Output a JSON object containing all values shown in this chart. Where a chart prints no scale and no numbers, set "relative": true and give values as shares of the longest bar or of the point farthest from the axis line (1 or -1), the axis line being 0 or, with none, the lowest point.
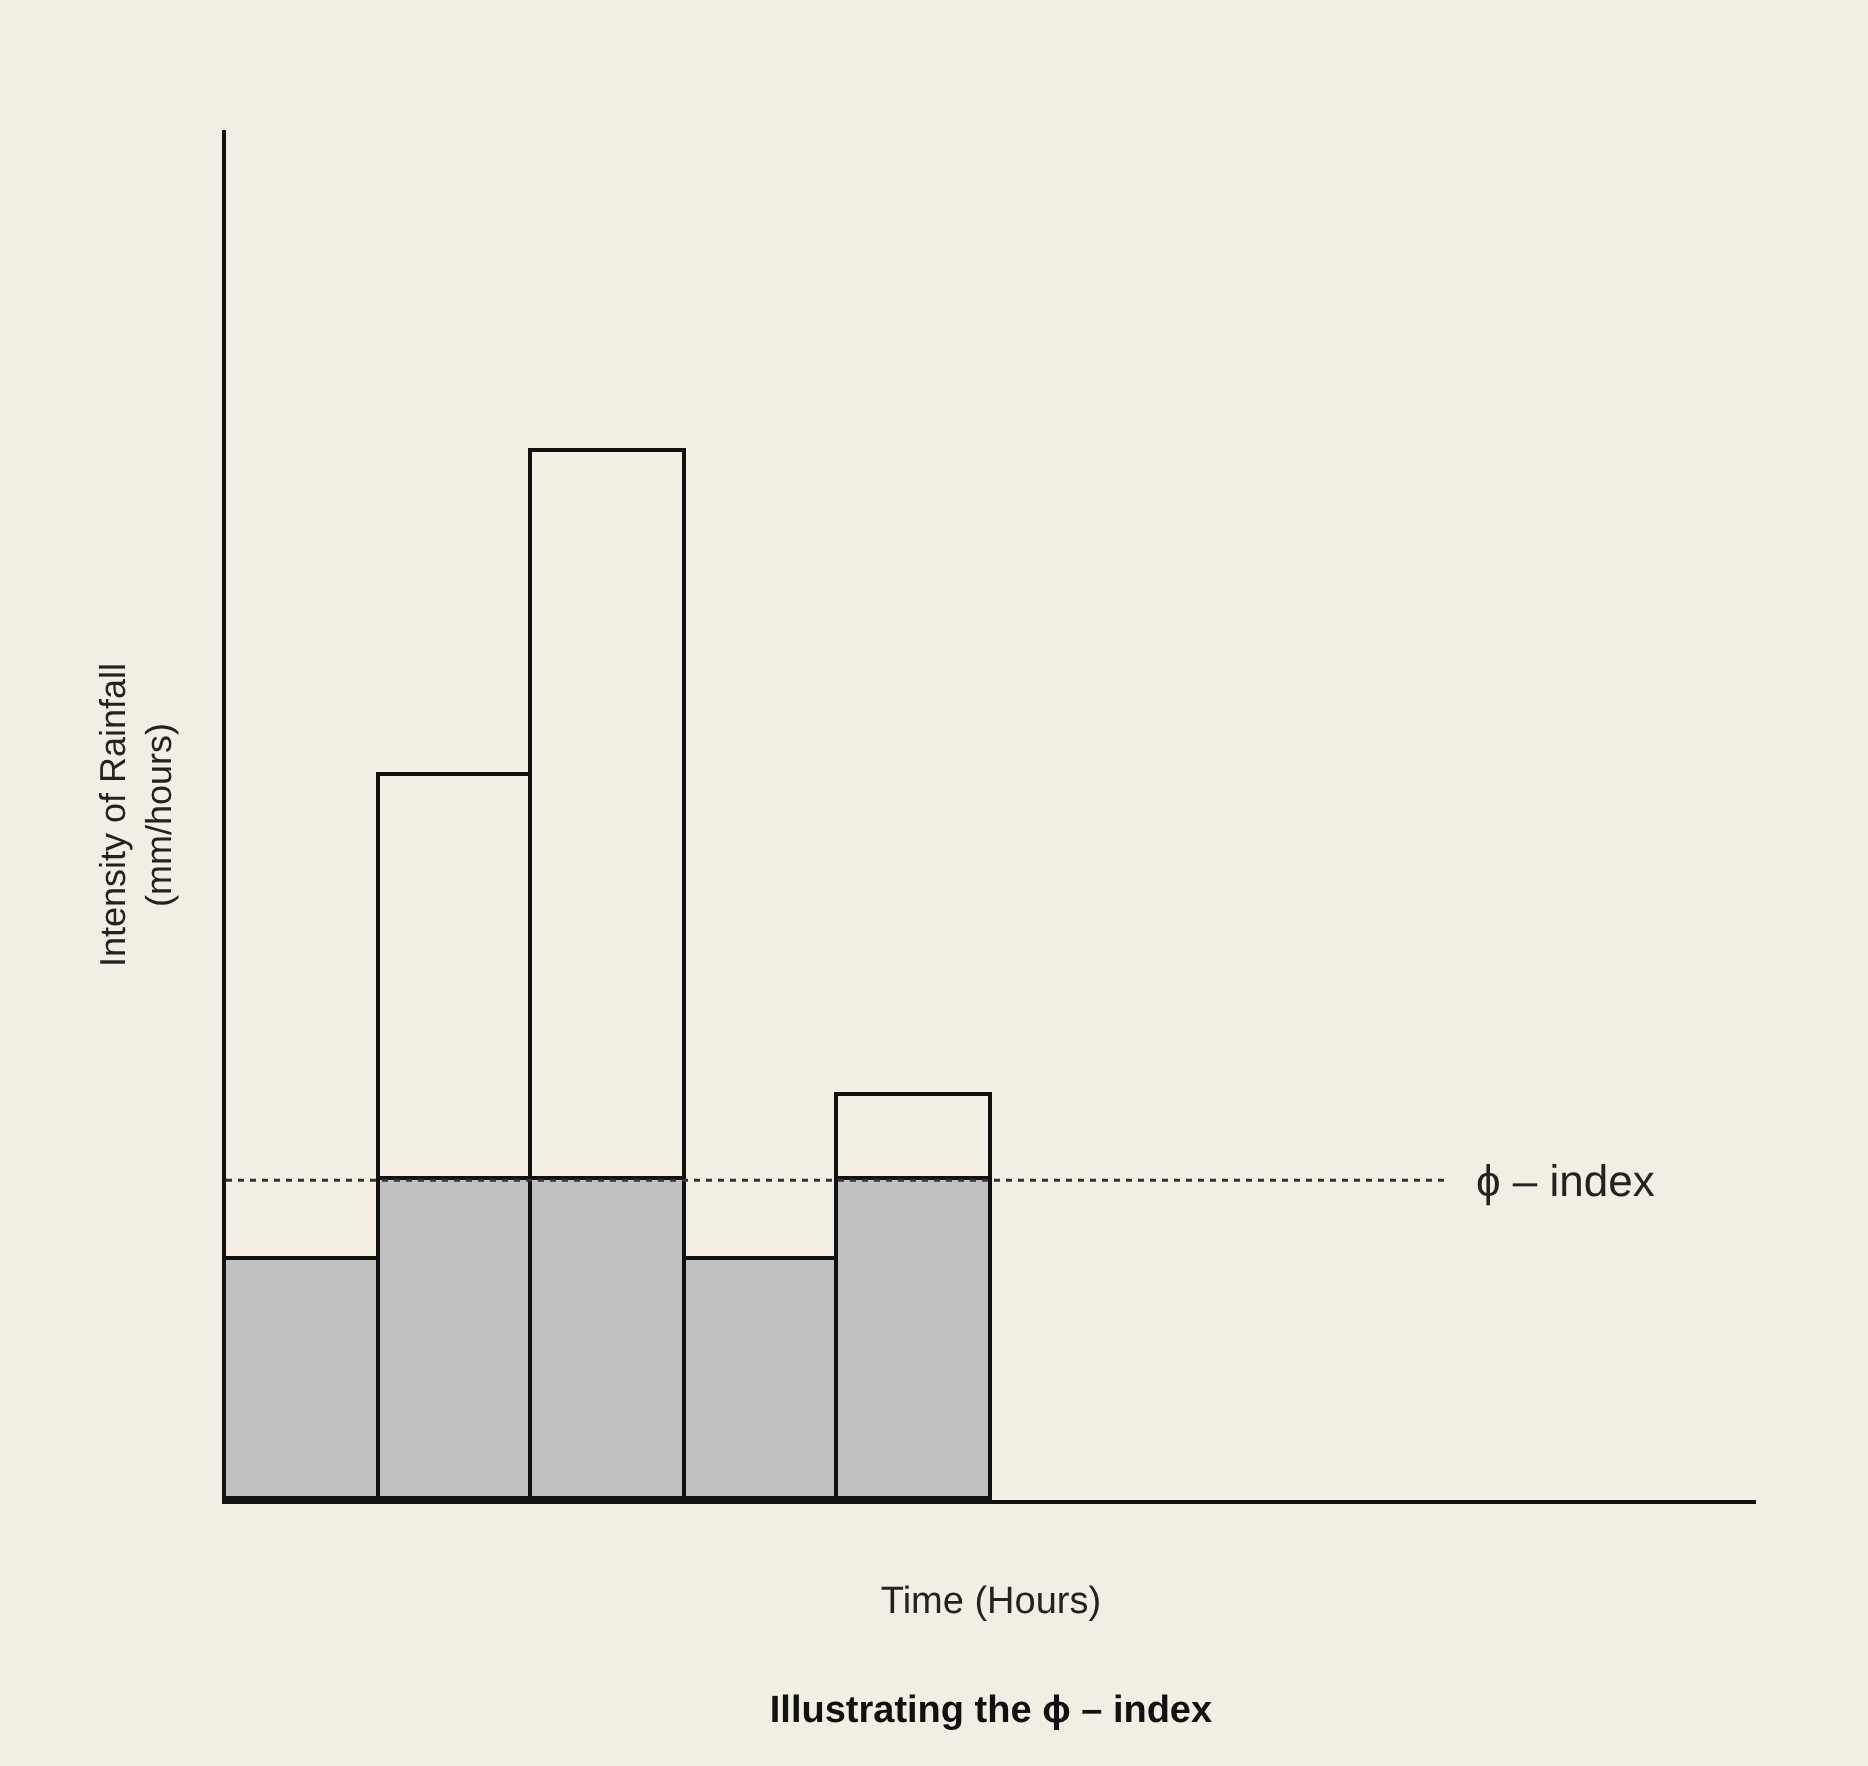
{
  "chart_data": {
    "type": "bar",
    "title": "Illustrating the ϕ – index",
    "xlabel": "Time (Hours)",
    "ylabel": "Intensity of Rainfall\n(mm/hours)",
    "relative": true,
    "stacked": true,
    "categories": [
      null,
      null,
      null,
      null,
      null
    ],
    "series": [
      {
        "color": "#c0c0c0",
        "values": [
          0.229,
          0.305,
          0.305,
          0.229,
          0.305
        ]
      },
      {
        "color": "#f2eee3",
        "values": [
          null,
          0.386,
          0.695,
          null,
          0.08
        ]
      }
    ],
    "ref_lines": [
      {
        "axis": "y",
        "value": 0.305,
        "label": "ϕ – index",
        "line_style": "dotted",
        "color": "#333333"
      }
    ]
  }
}
